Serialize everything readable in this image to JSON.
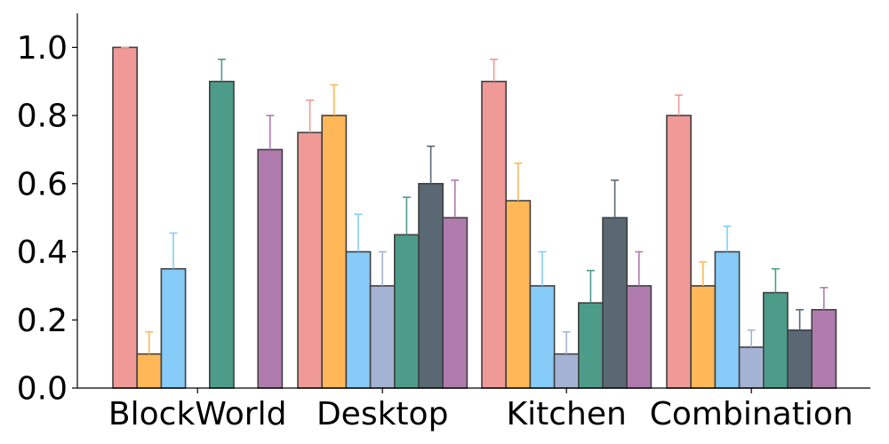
{
  "chart_data": {
    "type": "bar",
    "title": "",
    "xlabel": "",
    "ylabel": "",
    "categories": [
      "BlockWorld",
      "Desktop",
      "Kitchen",
      "Combination"
    ],
    "ylim": [
      0,
      1.1
    ],
    "yticks": [
      "0.0",
      "0.2",
      "0.4",
      "0.6",
      "0.8",
      "1.0"
    ],
    "grid": false,
    "legend": "none",
    "series": [
      {
        "color": "#f09a98",
        "values": [
          1.0,
          0.75,
          0.9,
          0.8
        ],
        "errors": [
          0.0,
          0.095,
          0.065,
          0.06
        ]
      },
      {
        "color": "#ffb757",
        "values": [
          0.1,
          0.8,
          0.55,
          0.3
        ],
        "errors": [
          0.065,
          0.09,
          0.11,
          0.07
        ]
      },
      {
        "color": "#87cbf8",
        "values": [
          0.35,
          0.4,
          0.3,
          0.4
        ],
        "errors": [
          0.105,
          0.11,
          0.1,
          0.075
        ]
      },
      {
        "color": "#a4b3d3",
        "values": [
          0.0,
          0.3,
          0.1,
          0.12
        ],
        "errors": [
          0.0,
          0.1,
          0.065,
          0.05
        ]
      },
      {
        "color": "#4d9b89",
        "values": [
          0.9,
          0.45,
          0.25,
          0.28
        ],
        "errors": [
          0.065,
          0.11,
          0.095,
          0.07
        ]
      },
      {
        "color": "#596873",
        "values": [
          0.0,
          0.6,
          0.5,
          0.17
        ],
        "errors": [
          0.0,
          0.11,
          0.11,
          0.06
        ]
      },
      {
        "color": "#b07cae",
        "values": [
          0.7,
          0.5,
          0.3,
          0.23
        ],
        "errors": [
          0.1,
          0.11,
          0.1,
          0.065
        ]
      }
    ]
  }
}
